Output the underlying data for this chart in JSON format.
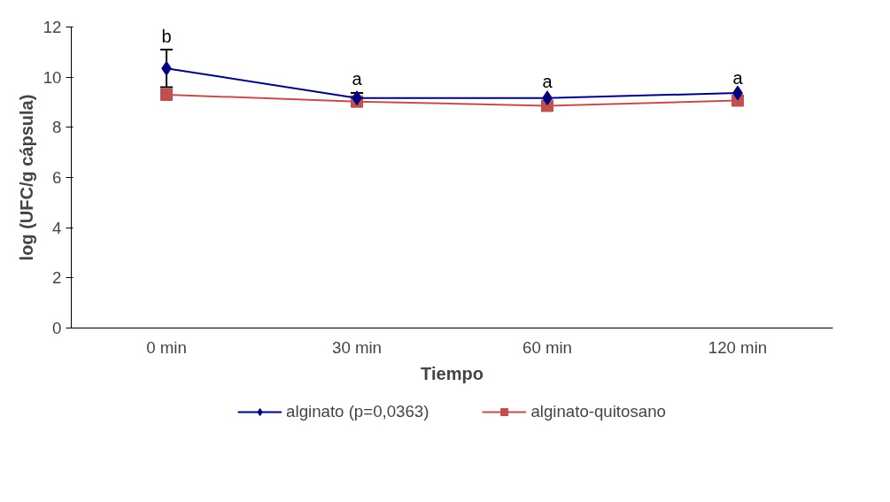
{
  "chart_data": {
    "type": "line",
    "xlabel": "Tiempo",
    "ylabel": "log (UFC/g cápsula)",
    "categories": [
      "0 min",
      "30 min",
      "60 min",
      "120 min"
    ],
    "series": [
      {
        "name": "alginato (p=0,0363)",
        "color": "#000080",
        "marker": "diamond",
        "values": [
          10.35,
          9.17,
          9.17,
          9.37
        ],
        "errors": [
          0.75,
          0.2,
          null,
          null
        ]
      },
      {
        "name": "alginato-quitosano",
        "color": "#c0504d",
        "marker": "square",
        "values": [
          9.3,
          9.03,
          8.86,
          9.07
        ]
      }
    ],
    "ylim": [
      0,
      12
    ],
    "yticks": [
      0,
      2,
      4,
      6,
      8,
      10,
      12
    ],
    "grid": false,
    "legend": "bottom",
    "annotations": [
      {
        "text": "b",
        "x": "0 min",
        "y": 11.1
      },
      {
        "text": "a",
        "x": "30 min",
        "y": 9.4
      },
      {
        "text": "a",
        "x": "60 min",
        "y": 9.3
      },
      {
        "text": "a",
        "x": "120 min",
        "y": 9.45
      }
    ]
  }
}
